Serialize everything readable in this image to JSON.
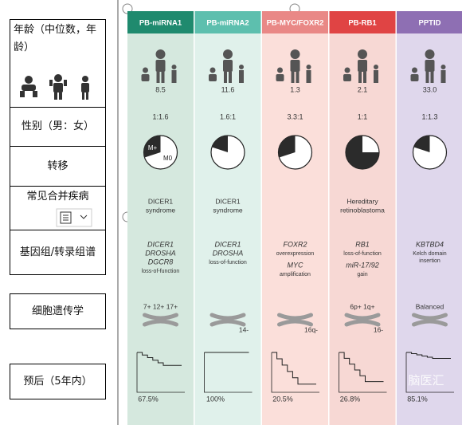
{
  "row_labels": [
    "年龄（中位数，年龄）",
    "性别（男：女）",
    "转移",
    "常见合并疾病",
    "基因组/转录组谱",
    "细胞遗传学",
    "预后（5年内）"
  ],
  "columns": [
    {
      "name": "PB-miRNA1",
      "header_color": "#1f8a6e",
      "body_color": "#d5e8de",
      "age": "8.5",
      "sex_ratio": "1:1.6",
      "metastasis_fraction": 0.3,
      "pie_labels": [
        "M+",
        "M0"
      ],
      "comorbidity": [
        "DICER1",
        "syndrome"
      ],
      "genomics": [
        {
          "text": "DICER1",
          "kind": "gene"
        },
        {
          "text": "DROSHA",
          "kind": "gene"
        },
        {
          "text": "DGCR8",
          "kind": "gene"
        },
        {
          "text": "loss-of-function",
          "kind": "note"
        }
      ],
      "cyto_top": "7+  12+  17+",
      "cyto_bottom": null,
      "survival": 67.5,
      "value_label": "67.5%"
    },
    {
      "name": "PB-miRNA2",
      "header_color": "#5dbfae",
      "body_color": "#e0f1eb",
      "age": "11.6",
      "sex_ratio": "1.6:1",
      "metastasis_fraction": 0.2,
      "pie_labels": null,
      "comorbidity": [
        "DICER1",
        "syndrome"
      ],
      "genomics": [
        {
          "text": "DICER1",
          "kind": "gene"
        },
        {
          "text": "DROSHA",
          "kind": "gene"
        },
        {
          "text": "loss-of-function",
          "kind": "note"
        }
      ],
      "cyto_top": null,
      "cyto_bottom": "14-",
      "survival": 100,
      "value_label": "100%"
    },
    {
      "name": "PB-MYC/FOXR2",
      "header_color": "#e98886",
      "body_color": "#fbdfda",
      "age": "1.3",
      "sex_ratio": "3.3:1",
      "metastasis_fraction": 0.3,
      "pie_labels": null,
      "comorbidity": null,
      "genomics": [
        {
          "text": "FOXR2",
          "kind": "gene"
        },
        {
          "text": "overexpression",
          "kind": "note"
        },
        {
          "text": "MYC",
          "kind": "gene"
        },
        {
          "text": "amplification",
          "kind": "note"
        }
      ],
      "cyto_top": null,
      "cyto_bottom": "16q-",
      "survival": 20.5,
      "value_label": "20.5%"
    },
    {
      "name": "PB-RB1",
      "header_color": "#e04444",
      "body_color": "#f7d8d4",
      "age": "2.1",
      "sex_ratio": "1:1",
      "metastasis_fraction": 0.75,
      "pie_labels": null,
      "comorbidity": [
        "Hereditary",
        "retinoblastoma"
      ],
      "genomics": [
        {
          "text": "RB1",
          "kind": "gene"
        },
        {
          "text": "loss-of-function",
          "kind": "note"
        },
        {
          "text": "miR-17/92",
          "kind": "gene"
        },
        {
          "text": "gain",
          "kind": "note"
        }
      ],
      "cyto_top": "6p+  1q+",
      "cyto_bottom": "16-",
      "survival": 26.8,
      "value_label": "26.8%"
    },
    {
      "name": "PPTID",
      "header_color": "#8e6fb3",
      "body_color": "#dfd7ec",
      "age": "33.0",
      "sex_ratio": "1:1.3",
      "metastasis_fraction": 0.2,
      "pie_labels": null,
      "comorbidity": null,
      "genomics": [
        {
          "text": "KBTBD4",
          "kind": "gene"
        },
        {
          "text": "Kelch domain",
          "kind": "note"
        },
        {
          "text": "insertion",
          "kind": "note"
        }
      ],
      "cyto_top": "Balanced",
      "cyto_bottom": null,
      "survival": 85.1,
      "value_label": "85.1%"
    }
  ],
  "watermark": "脑医汇"
}
